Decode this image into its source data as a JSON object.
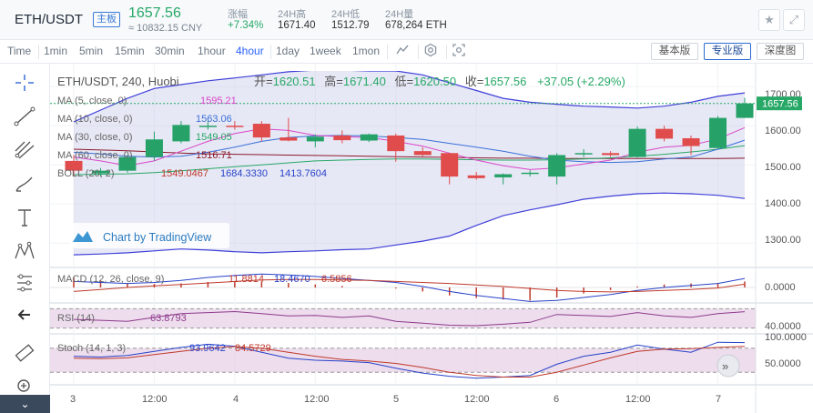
{
  "ticker": {
    "pair": "ETH/USDT",
    "tag": "主板",
    "price": "1657.56",
    "cny": "≈ 10832.15 CNY",
    "stats": [
      {
        "label": "涨幅",
        "value": "+7.34%",
        "up": true
      },
      {
        "label": "24H高",
        "value": "1671.40",
        "up": false
      },
      {
        "label": "24H低",
        "value": "1512.79",
        "up": false
      },
      {
        "label": "24H量",
        "value": "678,264 ETH",
        "up": false
      }
    ],
    "star_icon": "star-icon",
    "expand_icon": "expand-icon"
  },
  "toolbar": {
    "timeframes": [
      "Time",
      "1min",
      "5min",
      "15min",
      "30min",
      "1hour",
      "4hour",
      "1day",
      "1week",
      "1mon"
    ],
    "active_timeframe": "4hour",
    "views": [
      "基本版",
      "专业版",
      "深度图"
    ],
    "active_view": "专业版"
  },
  "chart": {
    "title": "ETH/USDT, 240, Huobi",
    "ohlc": {
      "o_label": "开",
      "o": "1620.51",
      "h_label": "高",
      "h": "1671.40",
      "l_label": "低",
      "l": "1620.50",
      "c_label": "收",
      "c": "1657.56",
      "change": "+37.05 (+2.29%)"
    },
    "ma5": {
      "label": "MA (5, close, 0)",
      "value": "1595.21",
      "color": "#d946c8"
    },
    "ma10": {
      "label": "MA (10, close, 0)",
      "value": "1563.06",
      "color": "#3a6fd8"
    },
    "ma30": {
      "label": "MA (30, close, 0)",
      "value": "1549.05",
      "color": "#27a866"
    },
    "ma60": {
      "label": "MA (60, close, 0)",
      "value": "1516.71",
      "color": "#8b1a2b"
    },
    "boll": {
      "label": "BOLL (20, 2)",
      "mid": "1549.0467",
      "upper": "1684.3330",
      "lower": "1413.7604"
    },
    "watermark": "Chart by TradingView",
    "last_price_tag": "1657.56",
    "price_ticks": [
      "1700.00",
      "1600.00",
      "1500.00",
      "1400.00",
      "1300.00"
    ],
    "macd": {
      "label": "MACD (12, 26, close, 9)",
      "hist": "11.8814",
      "macd": "18.4670",
      "signal": "6.5856",
      "tick": "0.0000"
    },
    "rsi": {
      "label": "RSI (14)",
      "value": "63.8793",
      "tick": "40.0000"
    },
    "stoch": {
      "label": "Stoch (14, 1, 3)",
      "k": "93.9642",
      "d": "84.5729",
      "ticks": [
        "100.0000",
        "50.0000"
      ]
    },
    "time_ticks": [
      "3",
      "12:00",
      "4",
      "12:00",
      "5",
      "12:00",
      "6",
      "12:00",
      "7"
    ]
  },
  "chart_data": {
    "type": "candlestick",
    "title": "ETH/USDT, 240, Huobi",
    "ylim": [
      1240,
      1740
    ],
    "candles": [
      {
        "o": 1510,
        "h": 1525,
        "l": 1470,
        "c": 1485
      },
      {
        "o": 1478,
        "h": 1492,
        "l": 1470,
        "c": 1485
      },
      {
        "o": 1485,
        "h": 1525,
        "l": 1480,
        "c": 1520
      },
      {
        "o": 1520,
        "h": 1585,
        "l": 1510,
        "c": 1565
      },
      {
        "o": 1560,
        "h": 1612,
        "l": 1555,
        "c": 1602
      },
      {
        "o": 1600,
        "h": 1612,
        "l": 1590,
        "c": 1600
      },
      {
        "o": 1600,
        "h": 1612,
        "l": 1590,
        "c": 1598
      },
      {
        "o": 1605,
        "h": 1612,
        "l": 1560,
        "c": 1570
      },
      {
        "o": 1570,
        "h": 1620,
        "l": 1560,
        "c": 1562
      },
      {
        "o": 1560,
        "h": 1578,
        "l": 1545,
        "c": 1572
      },
      {
        "o": 1575,
        "h": 1588,
        "l": 1555,
        "c": 1563
      },
      {
        "o": 1562,
        "h": 1580,
        "l": 1558,
        "c": 1578
      },
      {
        "o": 1575,
        "h": 1580,
        "l": 1508,
        "c": 1535
      },
      {
        "o": 1535,
        "h": 1545,
        "l": 1522,
        "c": 1525
      },
      {
        "o": 1530,
        "h": 1530,
        "l": 1450,
        "c": 1470
      },
      {
        "o": 1473,
        "h": 1482,
        "l": 1462,
        "c": 1466
      },
      {
        "o": 1468,
        "h": 1478,
        "l": 1450,
        "c": 1476
      },
      {
        "o": 1480,
        "h": 1486,
        "l": 1470,
        "c": 1480
      },
      {
        "o": 1470,
        "h": 1530,
        "l": 1450,
        "c": 1525
      },
      {
        "o": 1528,
        "h": 1540,
        "l": 1520,
        "c": 1530
      },
      {
        "o": 1530,
        "h": 1535,
        "l": 1520,
        "c": 1525
      },
      {
        "o": 1520,
        "h": 1598,
        "l": 1518,
        "c": 1592
      },
      {
        "o": 1592,
        "h": 1600,
        "l": 1560,
        "c": 1567
      },
      {
        "o": 1568,
        "h": 1575,
        "l": 1525,
        "c": 1548
      },
      {
        "o": 1543,
        "h": 1625,
        "l": 1540,
        "c": 1620
      },
      {
        "o": 1620,
        "h": 1671,
        "l": 1620,
        "c": 1657
      }
    ],
    "ma5": [
      1520,
      1510,
      1498,
      1510,
      1535,
      1560,
      1580,
      1592,
      1588,
      1575,
      1572,
      1570,
      1560,
      1548,
      1530,
      1512,
      1498,
      1488,
      1492,
      1502,
      1512,
      1532,
      1545,
      1550,
      1566,
      1595
    ],
    "ma10": [
      1532,
      1528,
      1522,
      1520,
      1522,
      1532,
      1545,
      1560,
      1570,
      1574,
      1575,
      1574,
      1570,
      1565,
      1555,
      1545,
      1535,
      1522,
      1512,
      1508,
      1506,
      1508,
      1515,
      1520,
      1540,
      1563
    ],
    "ma30": [
      1475,
      1476,
      1477,
      1480,
      1485,
      1490,
      1495,
      1500,
      1505,
      1510,
      1512,
      1514,
      1515,
      1515,
      1514,
      1513,
      1512,
      1512,
      1513,
      1515,
      1518,
      1522,
      1527,
      1533,
      1540,
      1549
    ],
    "ma60": [
      1540,
      1538,
      1536,
      1533,
      1530,
      1528,
      1527,
      1526,
      1525,
      1524,
      1523,
      1522,
      1521,
      1520,
      1519,
      1518,
      1517,
      1517,
      1516,
      1516,
      1516,
      1516,
      1516,
      1516,
      1516,
      1517
    ],
    "boll_upper": [
      1610,
      1640,
      1670,
      1695,
      1705,
      1715,
      1722,
      1730,
      1738,
      1742,
      1742,
      1740,
      1740,
      1730,
      1710,
      1690,
      1670,
      1660,
      1655,
      1650,
      1648,
      1645,
      1650,
      1660,
      1675,
      1684
    ],
    "boll_lower": [
      1270,
      1272,
      1275,
      1280,
      1285,
      1282,
      1278,
      1275,
      1278,
      1280,
      1283,
      1285,
      1295,
      1305,
      1318,
      1345,
      1370,
      1385,
      1398,
      1412,
      1420,
      1426,
      1428,
      1426,
      1422,
      1414
    ],
    "macd": {
      "macd": [
        12,
        10,
        8,
        10,
        14,
        20,
        24,
        27,
        25,
        22,
        18,
        14,
        10,
        2,
        -8,
        -16,
        -22,
        -28,
        -26,
        -20,
        -14,
        -6,
        0,
        4,
        8,
        18
      ],
      "signal": [
        -8,
        -4,
        0,
        3,
        6,
        9,
        12,
        15,
        16,
        16,
        15,
        14,
        12,
        10,
        8,
        5,
        2,
        -2,
        -6,
        -8,
        -9,
        -8,
        -6,
        -4,
        -1,
        6.6
      ],
      "hist": [
        20,
        14,
        8,
        7,
        8,
        11,
        12,
        12,
        9,
        6,
        3,
        0,
        -2,
        -8,
        -16,
        -21,
        -24,
        -26,
        -20,
        -12,
        -5,
        2,
        6,
        8,
        9,
        11.9
      ]
    },
    "rsi": [
      48,
      46,
      44,
      52,
      60,
      62,
      64,
      60,
      55,
      56,
      52,
      55,
      44,
      40,
      36,
      35,
      38,
      42,
      58,
      56,
      54,
      62,
      55,
      52,
      60,
      63.9
    ],
    "stoch": {
      "k": [
        60,
        58,
        62,
        72,
        82,
        90,
        85,
        70,
        55,
        50,
        48,
        44,
        30,
        18,
        10,
        5,
        8,
        12,
        40,
        60,
        70,
        88,
        78,
        70,
        95,
        94
      ],
      "d": [
        55,
        54,
        56,
        64,
        72,
        80,
        84,
        80,
        70,
        60,
        52,
        48,
        42,
        32,
        20,
        12,
        8,
        8,
        20,
        38,
        56,
        72,
        78,
        79,
        82,
        84.6
      ]
    }
  }
}
